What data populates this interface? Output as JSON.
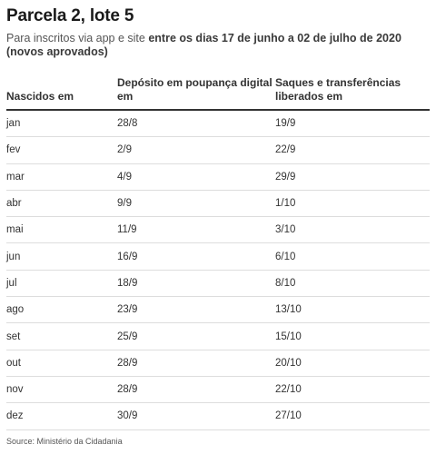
{
  "title": "Parcela 2, lote 5",
  "subtitle": {
    "plain": "Para inscritos via app e site ",
    "bold": "entre os dias 17 de junho a 02 de julho de 2020 (novos aprovados)"
  },
  "table": {
    "headers": [
      "Nascidos em",
      "Depósito em poupança digital em",
      "Saques e transferências liberados em"
    ],
    "rows": [
      [
        "jan",
        "28/8",
        "19/9"
      ],
      [
        "fev",
        "2/9",
        "22/9"
      ],
      [
        "mar",
        "4/9",
        "29/9"
      ],
      [
        "abr",
        "9/9",
        "1/10"
      ],
      [
        "mai",
        "11/9",
        "3/10"
      ],
      [
        "jun",
        "16/9",
        "6/10"
      ],
      [
        "jul",
        "18/9",
        "8/10"
      ],
      [
        "ago",
        "23/9",
        "13/10"
      ],
      [
        "set",
        "25/9",
        "15/10"
      ],
      [
        "out",
        "28/9",
        "20/10"
      ],
      [
        "nov",
        "28/9",
        "22/10"
      ],
      [
        "dez",
        "30/9",
        "27/10"
      ]
    ]
  },
  "source": "Source: Ministério da Cidadania"
}
